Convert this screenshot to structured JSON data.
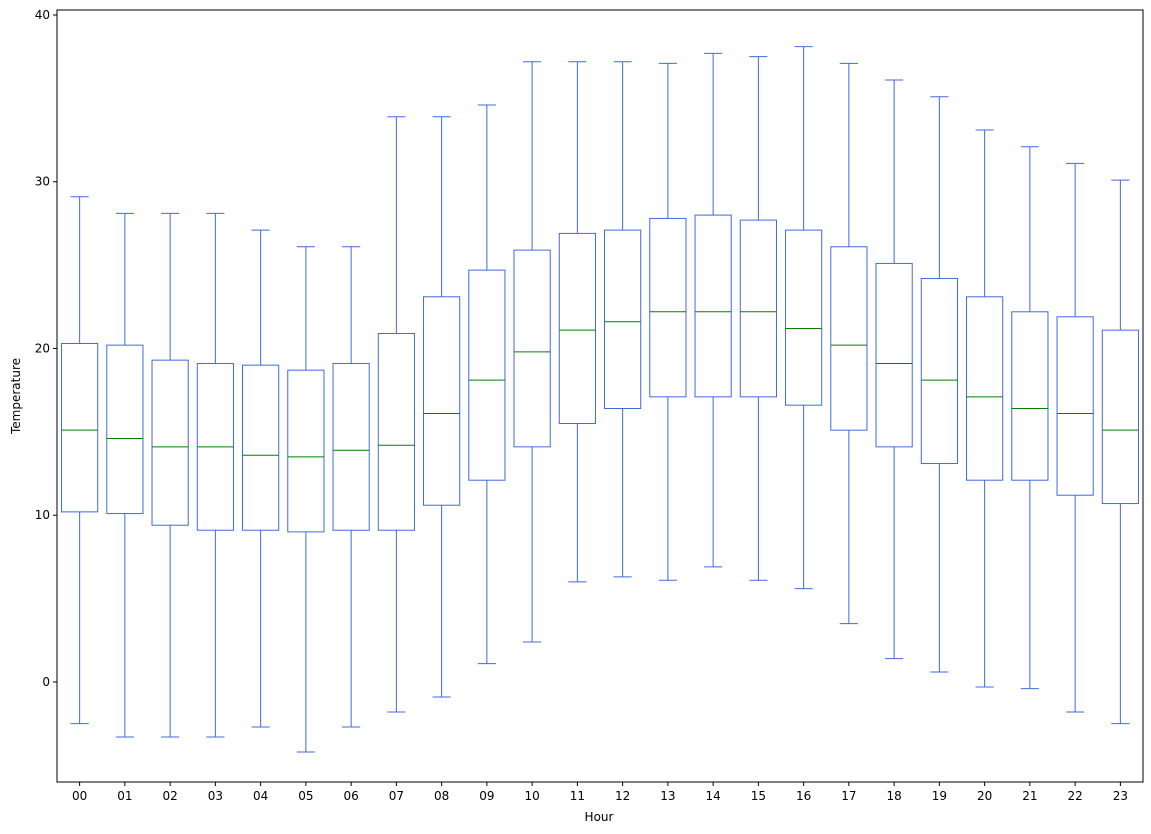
{
  "chart_data": {
    "type": "box",
    "xlabel": "Hour",
    "ylabel": "Temperature",
    "ylim": [
      -6.0,
      40.3
    ],
    "yticks": [
      0,
      10,
      20,
      30,
      40
    ],
    "grid": false,
    "colors": {
      "box": "#4169e1",
      "median": "#008000",
      "axes": "#000000"
    },
    "categories": [
      "00",
      "01",
      "02",
      "03",
      "04",
      "05",
      "06",
      "07",
      "08",
      "09",
      "10",
      "11",
      "12",
      "13",
      "14",
      "15",
      "16",
      "17",
      "18",
      "19",
      "20",
      "21",
      "22",
      "23"
    ],
    "boxes": [
      {
        "whislo": -2.5,
        "q1": 10.2,
        "med": 15.1,
        "q3": 20.3,
        "whishi": 29.1
      },
      {
        "whislo": -3.3,
        "q1": 10.1,
        "med": 14.6,
        "q3": 20.2,
        "whishi": 28.1
      },
      {
        "whislo": -3.3,
        "q1": 9.4,
        "med": 14.1,
        "q3": 19.3,
        "whishi": 28.1
      },
      {
        "whislo": -3.3,
        "q1": 9.1,
        "med": 14.1,
        "q3": 19.1,
        "whishi": 28.1
      },
      {
        "whislo": -2.7,
        "q1": 9.1,
        "med": 13.6,
        "q3": 19.0,
        "whishi": 27.1
      },
      {
        "whislo": -4.2,
        "q1": 9.0,
        "med": 13.5,
        "q3": 18.7,
        "whishi": 26.1
      },
      {
        "whislo": -2.7,
        "q1": 9.1,
        "med": 13.9,
        "q3": 19.1,
        "whishi": 26.1
      },
      {
        "whislo": -1.8,
        "q1": 9.1,
        "med": 14.2,
        "q3": 20.9,
        "whishi": 33.9
      },
      {
        "whislo": -0.9,
        "q1": 10.6,
        "med": 16.1,
        "q3": 23.1,
        "whishi": 33.9
      },
      {
        "whislo": 1.1,
        "q1": 12.1,
        "med": 18.1,
        "q3": 24.7,
        "whishi": 34.6
      },
      {
        "whislo": 2.4,
        "q1": 14.1,
        "med": 19.8,
        "q3": 25.9,
        "whishi": 37.2
      },
      {
        "whislo": 6.0,
        "q1": 15.5,
        "med": 21.1,
        "q3": 26.9,
        "whishi": 37.2
      },
      {
        "whislo": 6.3,
        "q1": 16.4,
        "med": 21.6,
        "q3": 27.1,
        "whishi": 37.2
      },
      {
        "whislo": 6.1,
        "q1": 17.1,
        "med": 22.2,
        "q3": 27.8,
        "whishi": 37.1
      },
      {
        "whislo": 6.9,
        "q1": 17.1,
        "med": 22.2,
        "q3": 28.0,
        "whishi": 37.7
      },
      {
        "whislo": 6.1,
        "q1": 17.1,
        "med": 22.2,
        "q3": 27.7,
        "whishi": 37.5
      },
      {
        "whislo": 5.6,
        "q1": 16.6,
        "med": 21.2,
        "q3": 27.1,
        "whishi": 38.1
      },
      {
        "whislo": 3.5,
        "q1": 15.1,
        "med": 20.2,
        "q3": 26.1,
        "whishi": 37.1
      },
      {
        "whislo": 1.4,
        "q1": 14.1,
        "med": 19.1,
        "q3": 25.1,
        "whishi": 36.1
      },
      {
        "whislo": 0.6,
        "q1": 13.1,
        "med": 18.1,
        "q3": 24.2,
        "whishi": 35.1
      },
      {
        "whislo": -0.3,
        "q1": 12.1,
        "med": 17.1,
        "q3": 23.1,
        "whishi": 33.1
      },
      {
        "whislo": -0.4,
        "q1": 12.1,
        "med": 16.4,
        "q3": 22.2,
        "whishi": 32.1
      },
      {
        "whislo": -1.8,
        "q1": 11.2,
        "med": 16.1,
        "q3": 21.9,
        "whishi": 31.1
      },
      {
        "whislo": -2.5,
        "q1": 10.7,
        "med": 15.1,
        "q3": 21.1,
        "whishi": 30.1
      }
    ]
  }
}
